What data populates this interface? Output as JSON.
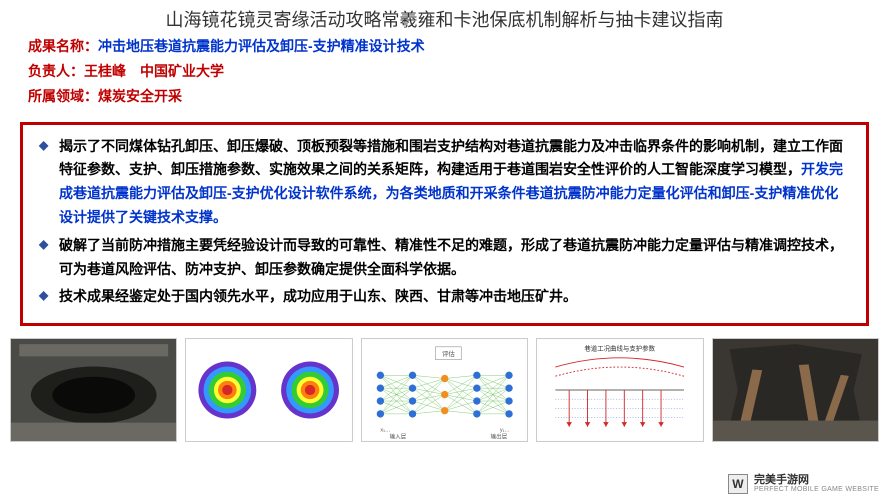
{
  "page_title": "山海镜花镜灵寄缘活动攻略常羲雍和卡池保底机制解析与抽卡建议指南",
  "header": {
    "name_label": "成果名称：",
    "name_value": "冲击地压巷道抗震能力评估及卸压-支护精准设计技术",
    "person_label": "负责人：",
    "person_value": "王桂峰　中国矿业大学",
    "field_label": "所属领域：",
    "field_value": "煤炭安全开采"
  },
  "bullets": [
    {
      "pre": "揭示了不同煤体钻孔卸压、卸压爆破、顶板预裂等措施和围岩支护结构对巷道抗震能力及冲击临界条件的影响机制，建立工作面特征参数、支护、卸压措施参数、实施效果之间的关系矩阵，构建适用于巷道围岩安全性评价的人工智能深度学习模型，",
      "hl": "开发完成巷道抗震能力评估及卸压-支护优化设计软件系统，为各类地质和开采条件巷道抗震防冲能力定量化评估和卸压-支护精准优化设计提供了关键技术支撑。",
      "post": ""
    },
    {
      "pre": "破解了当前防冲措施主要凭经验设计而导致的可靠性、精准性不足的难题，形成了巷道抗震防冲能力定量评估与精准调控技术，可为巷道风险评估、防冲支护、卸压参数确定提供全面科学依据。",
      "hl": "",
      "post": ""
    },
    {
      "pre": "技术成果经鉴定处于国内领先水平，成功应用于山东、陕西、甘肃等冲击地压矿井。",
      "hl": "",
      "post": ""
    }
  ],
  "gallery": {
    "panel1": {
      "type": "photo-tunnel",
      "bg": "#4a4a46",
      "accent": "#cfcfc6"
    },
    "panel2": {
      "type": "stress-field",
      "colors": [
        "#d62728",
        "#ff7f0e",
        "#ffff33",
        "#33cc33",
        "#3399ff",
        "#6633cc"
      ]
    },
    "panel3": {
      "type": "neural-net",
      "layers": [
        4,
        4,
        3,
        4,
        4
      ],
      "node_color": "#2e6fd6",
      "mid_color": "#f28e1c",
      "edge_color": "#58b947"
    },
    "panel4": {
      "type": "support-diagram",
      "line_color": "#d62728",
      "axis_color": "#333333",
      "arrow_color": "#d62728"
    },
    "panel5": {
      "type": "photo-damage",
      "bg": "#3a3732",
      "wood": "#8a6a4a"
    }
  },
  "watermark": {
    "logo": "W",
    "cn": "完美手游网",
    "en": "PERFECT MOBILE GAME WEBSITE"
  },
  "colors": {
    "brand_red": "#c00000",
    "brand_blue": "#0033cc",
    "diamond": "#2e4e9e"
  }
}
